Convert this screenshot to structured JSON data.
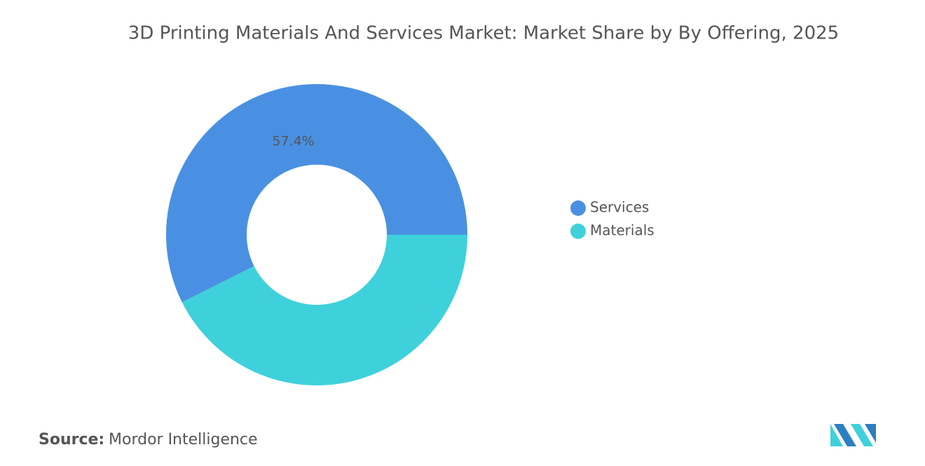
{
  "chart_data": {
    "type": "donut",
    "title": "3D Printing Materials And Services Market: Market Share by By Offering, 2025",
    "categories": [
      "Services",
      "Materials"
    ],
    "values": [
      57.4,
      42.6
    ],
    "value_labels": [
      "57.4%",
      null
    ],
    "colors": [
      "#4a90e2",
      "#3ed1db"
    ],
    "legend": "right"
  },
  "footer": {
    "source_label": "Source:",
    "source": "Mordor Intelligence"
  }
}
